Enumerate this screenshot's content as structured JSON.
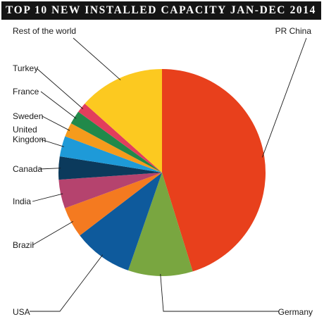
{
  "chart_data": {
    "type": "pie",
    "title": "TOP 10 NEW INSTALLED CAPACITY JAN-DEC 2014",
    "slices": [
      {
        "label": "PR China",
        "value": 45.2,
        "color": "#e8401c"
      },
      {
        "label": "Germany",
        "value": 10.1,
        "color": "#79a640"
      },
      {
        "label": "USA",
        "value": 9.3,
        "color": "#0e5a9c"
      },
      {
        "label": "Brazil",
        "value": 4.8,
        "color": "#f47a20"
      },
      {
        "label": "India",
        "value": 4.5,
        "color": "#b5436e"
      },
      {
        "label": "Canada",
        "value": 3.6,
        "color": "#0b3a5c"
      },
      {
        "label": "United\nKingdom",
        "value": 3.2,
        "color": "#1e9ad8"
      },
      {
        "label": "Sweden",
        "value": 2.2,
        "color": "#f59b1c"
      },
      {
        "label": "France",
        "value": 2.1,
        "color": "#21894a"
      },
      {
        "label": "Turkey",
        "value": 1.6,
        "color": "#e23e5c"
      },
      {
        "label": "Rest of the world",
        "value": 13.4,
        "color": "#fcc920"
      }
    ]
  }
}
